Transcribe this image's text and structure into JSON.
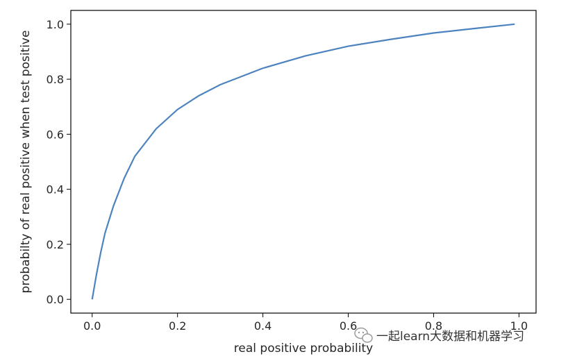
{
  "chart_data": {
    "type": "line",
    "title": "",
    "xlabel": "real positive probability",
    "ylabel": "probabilty of real positive when test positive",
    "xlim": [
      -0.05,
      1.04
    ],
    "ylim": [
      -0.05,
      1.05
    ],
    "xticks": [
      0.0,
      0.2,
      0.4,
      0.6,
      0.8,
      1.0
    ],
    "yticks": [
      0.0,
      0.2,
      0.4,
      0.6,
      0.8,
      1.0
    ],
    "xtick_labels": [
      "0.0",
      "0.2",
      "0.4",
      "0.6",
      "0.8",
      "1.0"
    ],
    "ytick_labels": [
      "0.0",
      "0.2",
      "0.4",
      "0.6",
      "0.8",
      "1.0"
    ],
    "grid": false,
    "series": [
      {
        "color": "#4c83bf",
        "x": [
          0.0,
          0.01,
          0.02,
          0.03,
          0.05,
          0.075,
          0.1,
          0.15,
          0.2,
          0.25,
          0.3,
          0.4,
          0.5,
          0.6,
          0.7,
          0.8,
          0.9,
          0.99
        ],
        "y": [
          0.0,
          0.09,
          0.17,
          0.24,
          0.34,
          0.44,
          0.52,
          0.62,
          0.69,
          0.74,
          0.78,
          0.84,
          0.885,
          0.92,
          0.945,
          0.968,
          0.985,
          1.0
        ]
      }
    ]
  },
  "watermark": {
    "text": "一起learn大数据和机器学习",
    "icon": "wechat-icon"
  }
}
